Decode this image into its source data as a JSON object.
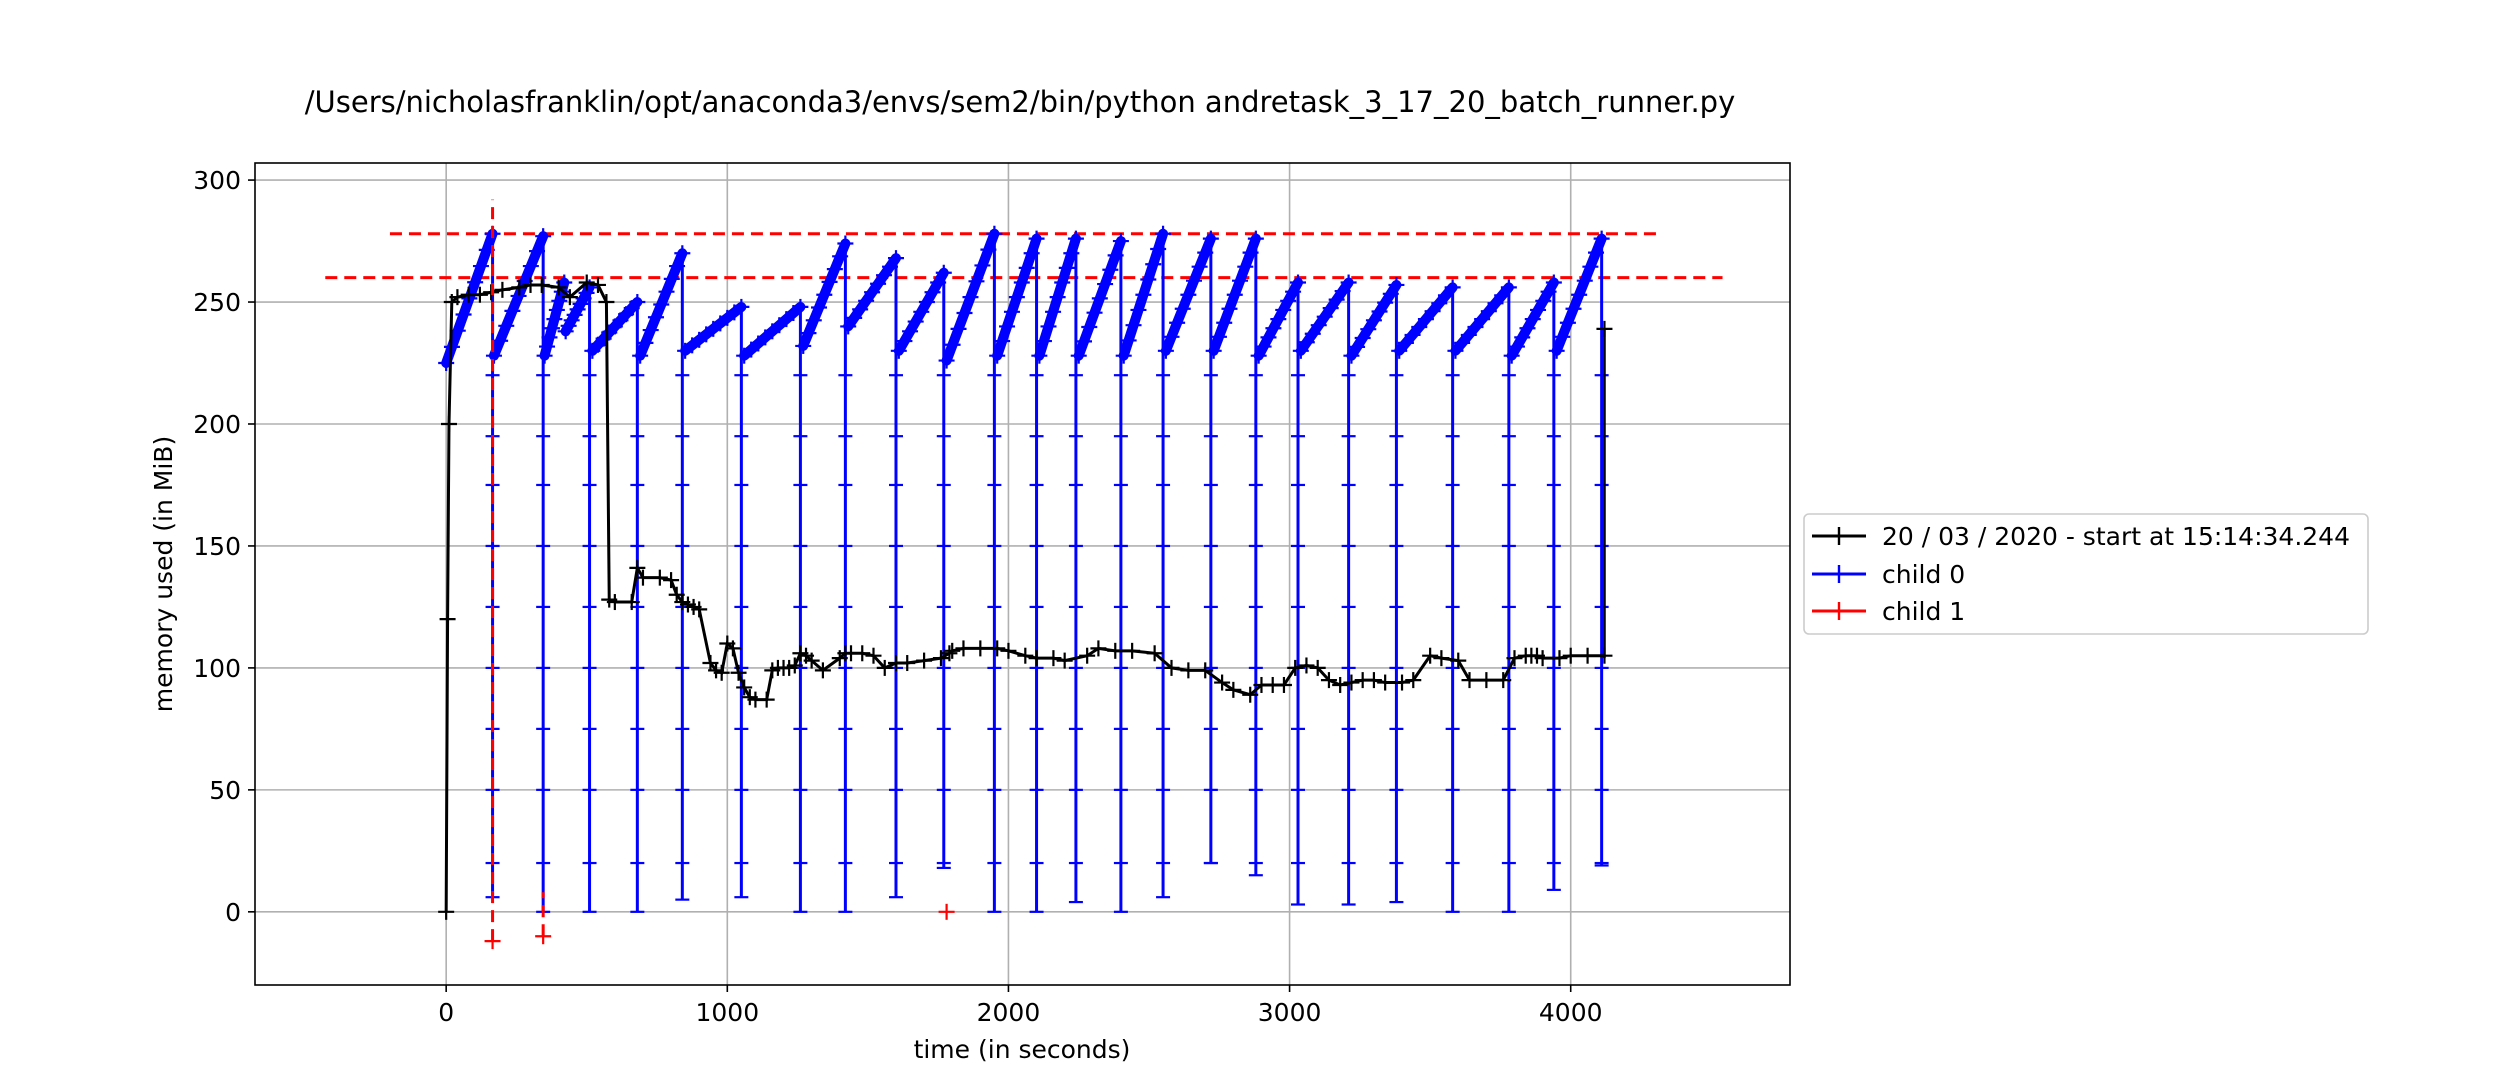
{
  "chart_data": {
    "type": "line",
    "title": "/Users/nicholasfranklin/opt/anaconda3/envs/sem2/bin/python andretask_3_17_20_batch_runner.py",
    "xlabel": "time (in seconds)",
    "ylabel": "memory used (in MiB)",
    "xlim": [
      -680,
      4780
    ],
    "ylim": [
      -30,
      307
    ],
    "xticks": [
      0,
      1000,
      2000,
      3000,
      4000
    ],
    "yticks": [
      0,
      50,
      100,
      150,
      200,
      250,
      300
    ],
    "grid": true,
    "legend_position": "right, outside plot",
    "series": [
      {
        "name": "20 / 03 / 2020 - start at 15:14:34.244",
        "color": "#000000",
        "marker": "+",
        "x": [
          0,
          5,
          10,
          20,
          40,
          80,
          120,
          160,
          200,
          260,
          300,
          340,
          400,
          440,
          500,
          540,
          570,
          580,
          600,
          660,
          680,
          700,
          760,
          800,
          820,
          840,
          860,
          880,
          900,
          940,
          960,
          980,
          1000,
          1020,
          1040,
          1060,
          1080,
          1100,
          1140,
          1160,
          1180,
          1200,
          1220,
          1240,
          1260,
          1280,
          1300,
          1340,
          1400,
          1420,
          1440,
          1480,
          1520,
          1560,
          1600,
          1640,
          1700,
          1760,
          1790,
          1800,
          1840,
          1900,
          1960,
          2000,
          2060,
          2100,
          2160,
          2200,
          2280,
          2320,
          2380,
          2440,
          2520,
          2580,
          2640,
          2700,
          2760,
          2800,
          2860,
          2900,
          2940,
          2980,
          3020,
          3060,
          3100,
          3140,
          3180,
          3220,
          3260,
          3300,
          3340,
          3400,
          3440,
          3500,
          3540,
          3600,
          3640,
          3700,
          3760,
          3800,
          3840,
          3860,
          3880,
          3900,
          3960,
          4000,
          4060,
          4120
        ],
        "y": [
          0,
          120,
          200,
          250,
          252,
          253,
          253,
          254,
          255,
          256,
          257,
          257,
          256,
          252,
          258,
          257,
          250,
          128,
          127,
          127,
          141,
          137,
          137,
          136,
          130,
          127,
          126,
          125,
          124,
          102,
          99,
          98,
          110,
          108,
          98,
          92,
          88,
          87,
          87,
          99,
          100,
          100,
          100,
          101,
          106,
          105,
          103,
          99,
          104,
          106,
          106,
          106,
          105,
          100,
          102,
          102,
          103,
          104,
          106,
          107,
          108,
          108,
          108,
          107,
          105,
          104,
          104,
          103,
          105,
          108,
          107,
          107,
          106,
          100,
          99,
          99,
          94,
          91,
          89,
          93,
          93,
          93,
          100,
          101,
          100,
          95,
          93,
          94,
          95,
          95,
          94,
          94,
          95,
          105,
          104,
          103,
          95,
          95,
          95,
          104,
          105,
          105,
          105,
          104,
          104,
          105,
          105,
          105
        ],
        "spikes": [
          {
            "x": 4120,
            "low": 104,
            "high": 239
          }
        ]
      },
      {
        "name": "child 0",
        "color": "#0000ff",
        "marker": "+",
        "cycles": [
          {
            "x0": 0,
            "x1": 165,
            "y_start": 225,
            "y_end": 278
          },
          {
            "x0": 170,
            "x1": 345,
            "y_start": 228,
            "y_end": 277
          },
          {
            "x0": 350,
            "x1": 420,
            "y_start": 228,
            "y_end": 258
          },
          {
            "x0": 425,
            "x1": 510,
            "y_start": 238,
            "y_end": 256
          },
          {
            "x0": 520,
            "x1": 680,
            "y_start": 230,
            "y_end": 250
          },
          {
            "x0": 690,
            "x1": 840,
            "y_start": 228,
            "y_end": 270
          },
          {
            "x0": 850,
            "x1": 1050,
            "y_start": 230,
            "y_end": 248
          },
          {
            "x0": 1060,
            "x1": 1260,
            "y_start": 228,
            "y_end": 248
          },
          {
            "x0": 1270,
            "x1": 1420,
            "y_start": 232,
            "y_end": 274
          },
          {
            "x0": 1430,
            "x1": 1600,
            "y_start": 240,
            "y_end": 268
          },
          {
            "x0": 1610,
            "x1": 1770,
            "y_start": 230,
            "y_end": 262
          },
          {
            "x0": 1780,
            "x1": 1950,
            "y_start": 226,
            "y_end": 278
          },
          {
            "x0": 1960,
            "x1": 2100,
            "y_start": 228,
            "y_end": 276
          },
          {
            "x0": 2110,
            "x1": 2240,
            "y_start": 228,
            "y_end": 276
          },
          {
            "x0": 2250,
            "x1": 2400,
            "y_start": 228,
            "y_end": 275
          },
          {
            "x0": 2410,
            "x1": 2550,
            "y_start": 228,
            "y_end": 278
          },
          {
            "x0": 2560,
            "x1": 2720,
            "y_start": 230,
            "y_end": 276
          },
          {
            "x0": 2730,
            "x1": 2880,
            "y_start": 230,
            "y_end": 276
          },
          {
            "x0": 2890,
            "x1": 3030,
            "y_start": 228,
            "y_end": 258
          },
          {
            "x0": 3040,
            "x1": 3210,
            "y_start": 230,
            "y_end": 258
          },
          {
            "x0": 3220,
            "x1": 3380,
            "y_start": 228,
            "y_end": 257
          },
          {
            "x0": 3390,
            "x1": 3580,
            "y_start": 230,
            "y_end": 256
          },
          {
            "x0": 3590,
            "x1": 3780,
            "y_start": 230,
            "y_end": 256
          },
          {
            "x0": 3790,
            "x1": 3940,
            "y_start": 228,
            "y_end": 258
          },
          {
            "x0": 3950,
            "x1": 4110,
            "y_start": 230,
            "y_end": 276
          }
        ],
        "drops": [
          {
            "x": 165,
            "low": 6
          },
          {
            "x": 345,
            "low": 0
          },
          {
            "x": 510,
            "low": 0
          },
          {
            "x": 680,
            "low": 0
          },
          {
            "x": 840,
            "low": 5
          },
          {
            "x": 1050,
            "low": 6
          },
          {
            "x": 1260,
            "low": 0
          },
          {
            "x": 1420,
            "low": 0
          },
          {
            "x": 1600,
            "low": 6
          },
          {
            "x": 1770,
            "low": 18
          },
          {
            "x": 1950,
            "low": 0
          },
          {
            "x": 2100,
            "low": 0
          },
          {
            "x": 2240,
            "low": 4
          },
          {
            "x": 2400,
            "low": 0
          },
          {
            "x": 2550,
            "low": 6
          },
          {
            "x": 2720,
            "low": 20
          },
          {
            "x": 2880,
            "low": 15
          },
          {
            "x": 3030,
            "low": 3
          },
          {
            "x": 3210,
            "low": 3
          },
          {
            "x": 3380,
            "low": 4
          },
          {
            "x": 3580,
            "low": 0
          },
          {
            "x": 3780,
            "low": 0
          },
          {
            "x": 3940,
            "low": 9
          },
          {
            "x": 4110,
            "low": 19
          }
        ]
      },
      {
        "name": "child 1",
        "color": "#ff0000",
        "marker": "+",
        "x": [
          165,
          345,
          1780
        ],
        "y": [
          -12,
          -10,
          0
        ],
        "spikes": [
          {
            "x": 165,
            "low": -12,
            "high": 292
          },
          {
            "x": 345,
            "low": -10,
            "high": 8
          }
        ]
      }
    ],
    "reference_lines": [
      {
        "y": 278,
        "x0": -200,
        "x1": 4320,
        "color": "#ff0000",
        "style": "dashed"
      },
      {
        "y": 260,
        "x0": -430,
        "x1": 4540,
        "color": "#ff0000",
        "style": "dashed"
      }
    ]
  }
}
